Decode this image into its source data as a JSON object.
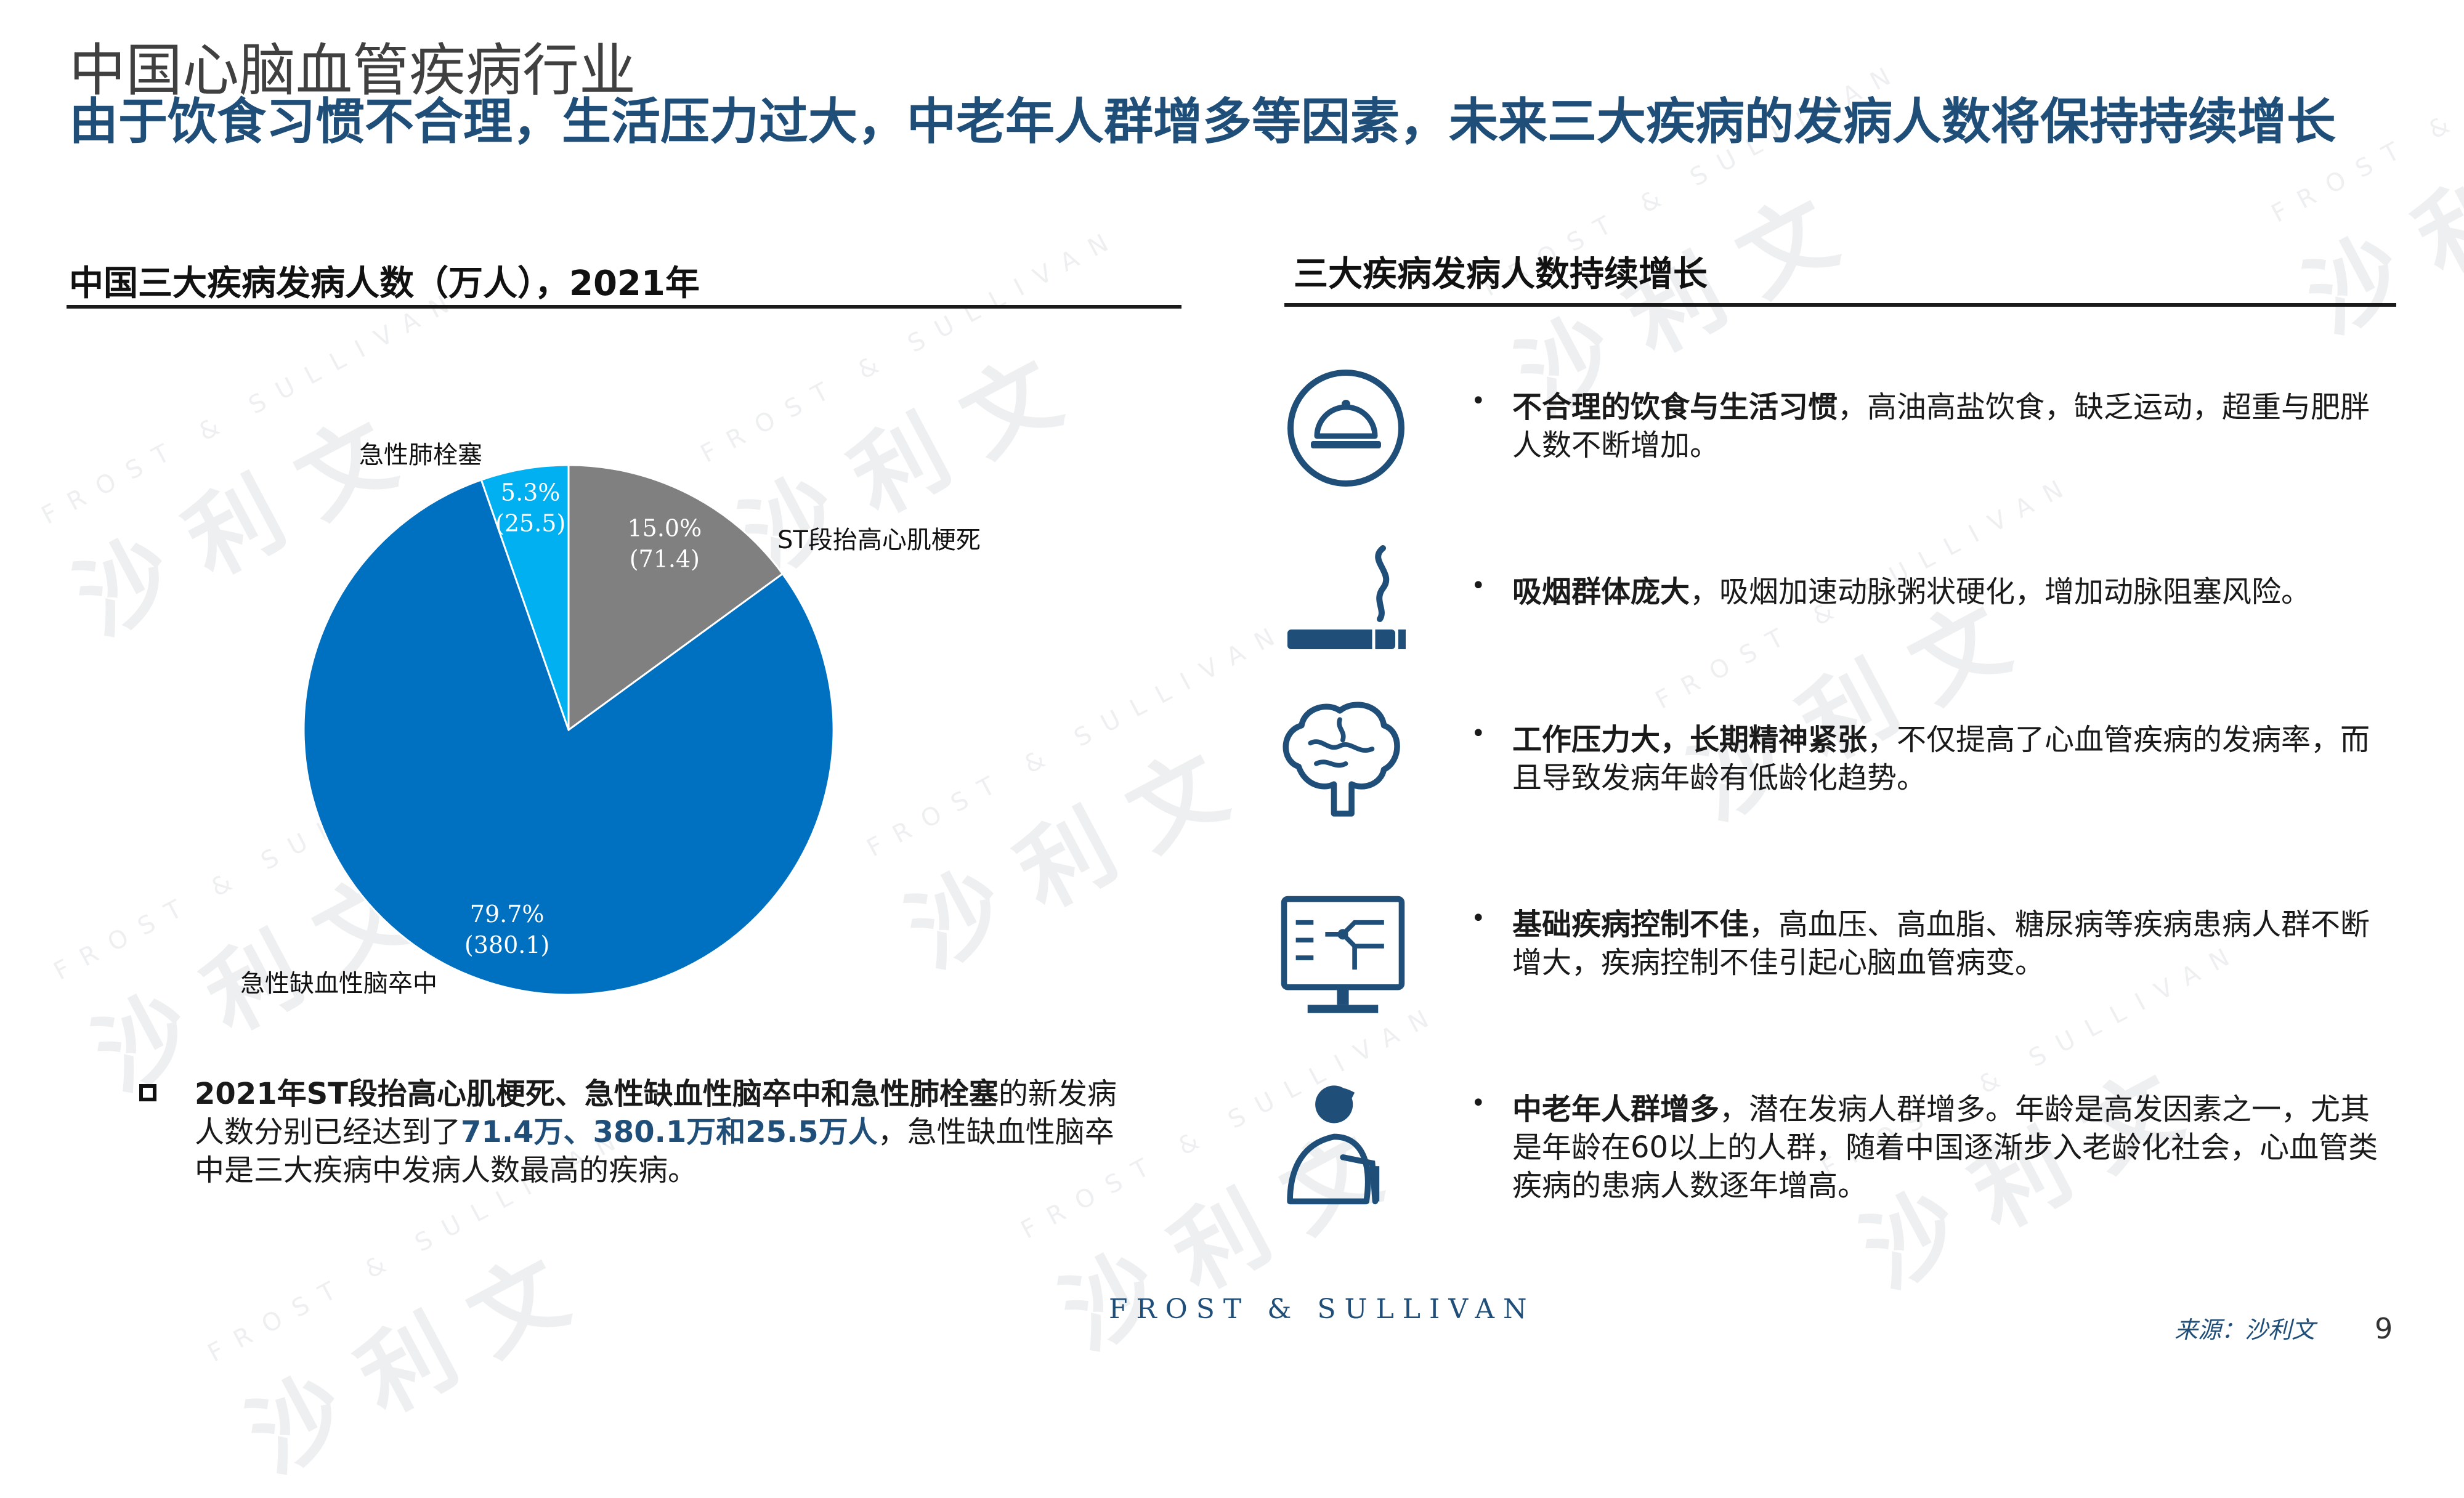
{
  "header": {
    "title": "中国心脑血管疾病行业",
    "subtitle": "由于饮食习惯不合理，生活压力过大，中老年人群增多等因素，未来三大疾病的发病人数将保持持续增长"
  },
  "left_section": {
    "title": "中国三大疾病发病人数（万人），2021年"
  },
  "right_section": {
    "title": "三大疾病发病人数持续增长"
  },
  "chart_data": {
    "type": "pie",
    "title": "中国三大疾病发病人数（万人），2021年",
    "slices": [
      {
        "name": "ST段抬高心肌梗死",
        "value": 71.4,
        "percent": "15.0%",
        "value_label": "(71.4)",
        "color": "#808080"
      },
      {
        "name": "急性缺血性脑卒中",
        "value": 380.1,
        "percent": "79.7%",
        "value_label": "(380.1)",
        "color": "#0070c0"
      },
      {
        "name": "急性肺栓塞",
        "value": 25.5,
        "percent": "5.3%",
        "value_label": "(25.5)",
        "color": "#00b0f0"
      }
    ]
  },
  "summary": {
    "bold_part": "2021年ST段抬高心肌梗死、急性缺血性脑卒中和急性肺栓塞",
    "text_part_1": "的新发病人数分别已经达到了",
    "highlight": "71.4万、380.1万和25.5万人",
    "text_part_2": "，急性缺血性脑卒中是三大疾病中发病人数最高的疾病。"
  },
  "factors": [
    {
      "icon": "food-cloche-icon",
      "bold": "不合理的饮食与生活习惯",
      "text": "，高油高盐饮食，缺乏运动，超重与肥胖人数不断增加。"
    },
    {
      "icon": "cigarette-icon",
      "bold": "吸烟群体庞大",
      "text": "，吸烟加速动脉粥状硬化，增加动脉阻塞风险。"
    },
    {
      "icon": "brain-icon",
      "bold": "工作压力大，长期精神紧张",
      "text": "，不仅提高了心血管疾病的发病率，而且导致发病年龄有低龄化趋势。"
    },
    {
      "icon": "monitor-chart-icon",
      "bold": "基础疾病控制不佳",
      "text": "，高血压、高血脂、糖尿病等疾病患病人群不断增大，疾病控制不佳引起心脑血管病变。"
    },
    {
      "icon": "elderly-person-icon",
      "bold": "中老年人群增多",
      "text": "，潜在发病人群增多。年龄是高发因素之一，尤其是年龄在60以上的人群，随着中国逐渐步入老龄化社会，心血管类疾病的患病人数逐年增高。"
    }
  ],
  "bullet_symbol": "•",
  "footer": {
    "logo": "FROST & SULLIVAN",
    "source": "来源：沙利文",
    "page_number": "9"
  },
  "watermark": {
    "cn": "沙 利 文",
    "en": "FROST & SULLIVAN"
  },
  "colors": {
    "navy": "#1f4e79",
    "grey_slice": "#808080",
    "blue_slice": "#0070c0",
    "cyan_slice": "#00b0f0"
  }
}
